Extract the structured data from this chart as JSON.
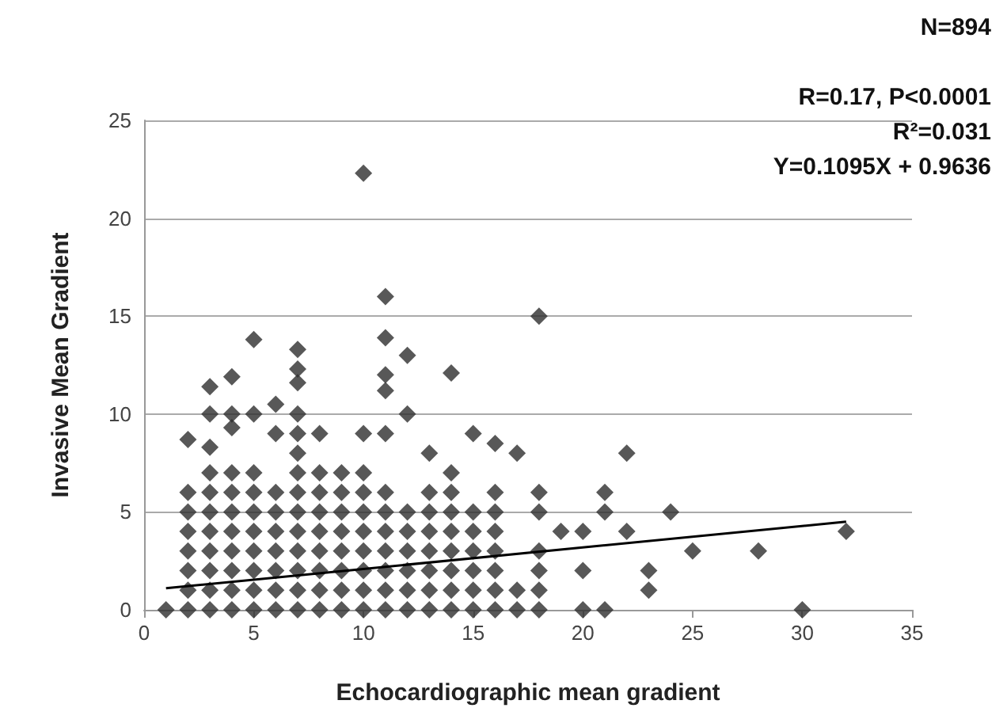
{
  "chart_data": {
    "type": "scatter",
    "xlabel": "Echocardiographic mean gradient",
    "ylabel": "Invasive Mean Gradient",
    "annotations": [
      "N=894",
      "R=0.17, P<0.0001",
      "R²=0.031",
      "Y=0.1095X + 0.9636"
    ],
    "xlim": [
      0,
      35
    ],
    "xticks": [
      0,
      5,
      10,
      15,
      20,
      25,
      30,
      35
    ],
    "ylim": [
      0,
      25
    ],
    "yticks": [
      0,
      5,
      10,
      15,
      20,
      25
    ],
    "grid": "y",
    "marker": "diamond",
    "series": [
      {
        "color": "#2e2e2e",
        "x": [
          1,
          2,
          2,
          2,
          2,
          2,
          2,
          2,
          2,
          3,
          3,
          3,
          3,
          3,
          3,
          3,
          3,
          3,
          3,
          3,
          4,
          4,
          4,
          4,
          4,
          4,
          4,
          4,
          4,
          4,
          4,
          5,
          5,
          5,
          5,
          5,
          5,
          5,
          5,
          5,
          5,
          6,
          6,
          6,
          6,
          6,
          6,
          6,
          6,
          6,
          7,
          7,
          7,
          7,
          7,
          7,
          7,
          7,
          7,
          7,
          7,
          7,
          7,
          7,
          8,
          8,
          8,
          8,
          8,
          8,
          8,
          8,
          8,
          9,
          9,
          9,
          9,
          9,
          9,
          9,
          9,
          10,
          10,
          10,
          10,
          10,
          10,
          10,
          10,
          10,
          10,
          11,
          11,
          11,
          11,
          11,
          11,
          11,
          11,
          11,
          11,
          11,
          11,
          12,
          12,
          12,
          12,
          12,
          12,
          12,
          12,
          13,
          13,
          13,
          13,
          13,
          13,
          13,
          13,
          14,
          14,
          14,
          14,
          14,
          14,
          14,
          14,
          14,
          15,
          15,
          15,
          15,
          15,
          15,
          15,
          16,
          16,
          16,
          16,
          16,
          16,
          16,
          16,
          17,
          17,
          17,
          18,
          18,
          18,
          18,
          18,
          18,
          18,
          19,
          20,
          20,
          20,
          21,
          21,
          21,
          22,
          22,
          23,
          23,
          24,
          25,
          28,
          30,
          32
        ],
        "values": [
          0,
          0,
          1,
          2,
          3,
          4,
          5,
          6,
          8.7,
          0,
          1,
          2,
          3,
          4,
          5,
          6,
          7,
          8.3,
          10,
          11.4,
          0,
          1,
          2,
          3,
          4,
          5,
          6,
          7,
          9.3,
          10,
          11.9,
          0,
          1,
          2,
          3,
          4,
          5,
          6,
          7,
          10,
          13.8,
          0,
          1,
          2,
          3,
          4,
          5,
          6,
          9,
          10.5,
          0,
          1,
          2,
          3,
          4,
          5,
          6,
          7,
          8,
          9,
          10,
          11.6,
          12.3,
          13.3,
          0,
          1,
          2,
          3,
          4,
          5,
          6,
          7,
          9,
          0,
          1,
          2,
          3,
          4,
          5,
          6,
          7,
          0,
          1,
          2,
          3,
          4,
          5,
          6,
          7,
          9,
          22.3,
          0,
          1,
          2,
          3,
          4,
          5,
          6,
          9,
          11.2,
          12,
          13.9,
          16,
          0,
          1,
          2,
          3,
          4,
          5,
          10,
          13,
          0,
          1,
          2,
          3,
          4,
          5,
          6,
          8,
          0,
          1,
          2,
          3,
          4,
          5,
          6,
          7,
          12.1,
          0,
          1,
          2,
          3,
          4,
          5,
          9,
          0,
          1,
          2,
          3,
          4,
          5,
          6,
          8.5,
          0,
          1,
          8,
          0,
          1,
          2,
          3,
          5,
          6,
          15,
          4,
          0,
          2,
          4,
          0,
          5,
          6,
          4,
          8,
          1,
          2,
          5,
          3,
          3,
          0,
          4
        ]
      },
      {
        "type": "line",
        "color": "#000000",
        "marker": "none",
        "line_style": "solid",
        "x": [
          1,
          32
        ],
        "values": [
          1.1,
          4.5
        ]
      }
    ]
  }
}
